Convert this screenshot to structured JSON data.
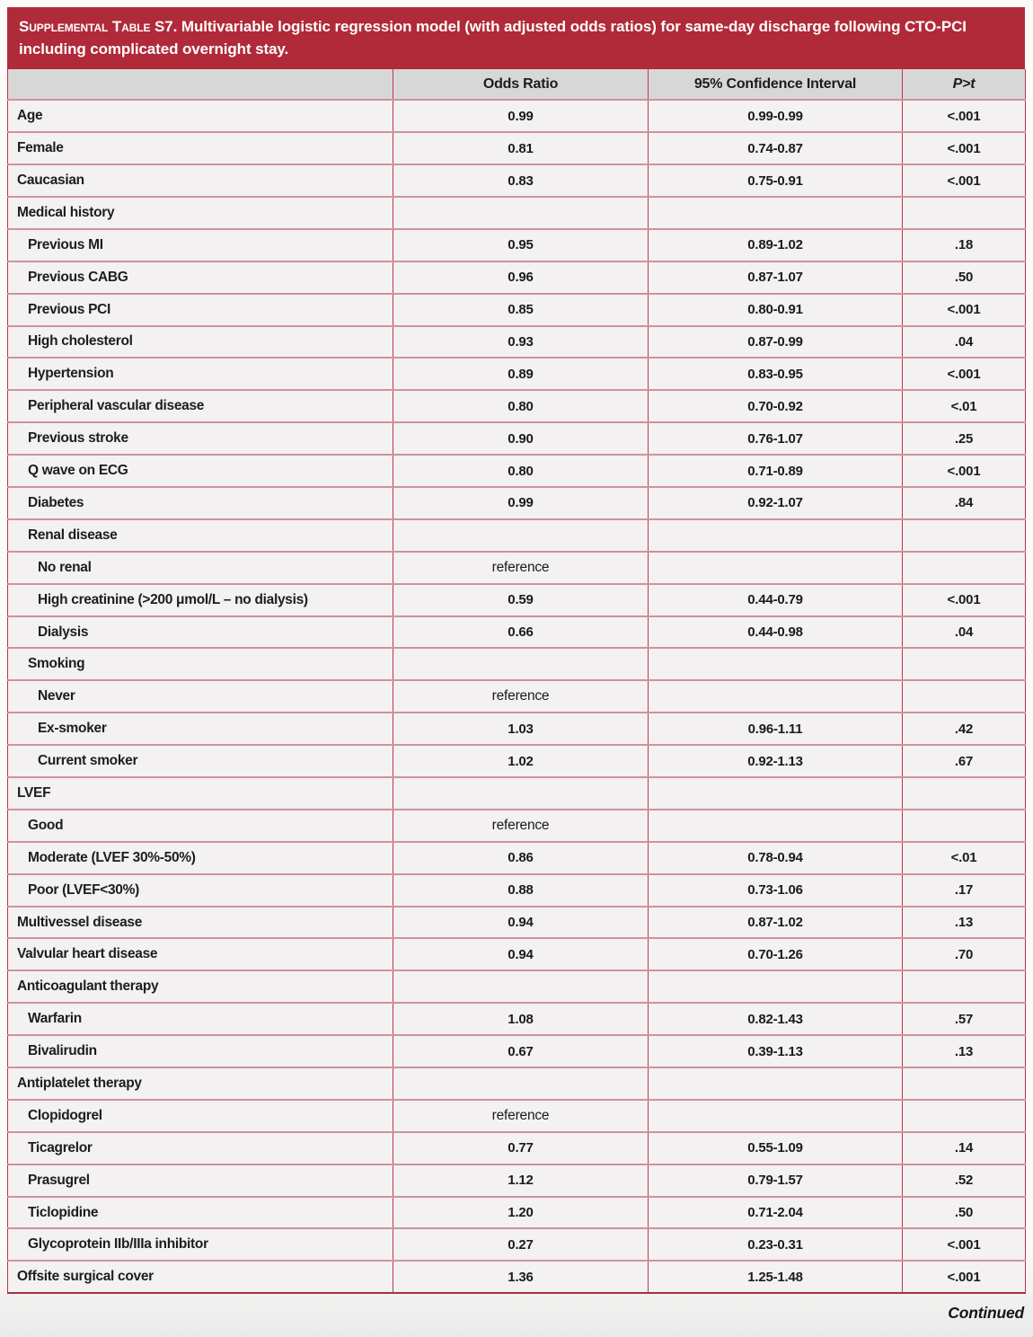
{
  "table": {
    "title_lead": "Supplemental Table S7.",
    "title_rest": "Multivariable logistic regression model (with adjusted odds ratios) for same-day discharge following CTO-PCI including complicated overnight stay.",
    "columns": [
      "",
      "Odds Ratio",
      "95% Confidence Interval",
      "P>t"
    ],
    "rows": [
      {
        "label": "Age",
        "indent": 0,
        "or": "0.99",
        "ci": "0.99-0.99",
        "p": "<.001"
      },
      {
        "label": "Female",
        "indent": 0,
        "or": "0.81",
        "ci": "0.74-0.87",
        "p": "<.001"
      },
      {
        "label": "Caucasian",
        "indent": 0,
        "or": "0.83",
        "ci": "0.75-0.91",
        "p": "<.001"
      },
      {
        "label": "Medical history",
        "indent": 0,
        "or": "",
        "ci": "",
        "p": ""
      },
      {
        "label": "Previous MI",
        "indent": 1,
        "or": "0.95",
        "ci": "0.89-1.02",
        "p": ".18"
      },
      {
        "label": "Previous CABG",
        "indent": 1,
        "or": "0.96",
        "ci": "0.87-1.07",
        "p": ".50"
      },
      {
        "label": "Previous PCI",
        "indent": 1,
        "or": "0.85",
        "ci": "0.80-0.91",
        "p": "<.001"
      },
      {
        "label": "High cholesterol",
        "indent": 1,
        "or": "0.93",
        "ci": "0.87-0.99",
        "p": ".04"
      },
      {
        "label": "Hypertension",
        "indent": 1,
        "or": "0.89",
        "ci": "0.83-0.95",
        "p": "<.001"
      },
      {
        "label": "Peripheral vascular disease",
        "indent": 1,
        "or": "0.80",
        "ci": "0.70-0.92",
        "p": "<.01"
      },
      {
        "label": "Previous stroke",
        "indent": 1,
        "or": "0.90",
        "ci": "0.76-1.07",
        "p": ".25"
      },
      {
        "label": "Q wave on ECG",
        "indent": 1,
        "or": "0.80",
        "ci": "0.71-0.89",
        "p": "<.001"
      },
      {
        "label": "Diabetes",
        "indent": 1,
        "or": "0.99",
        "ci": "0.92-1.07",
        "p": ".84"
      },
      {
        "label": "Renal disease",
        "indent": 1,
        "or": "",
        "ci": "",
        "p": ""
      },
      {
        "label": "No renal",
        "indent": 2,
        "or": "reference",
        "ci": "",
        "p": ""
      },
      {
        "label": "High creatinine (>200 μmol/L – no dialysis)",
        "indent": 2,
        "or": "0.59",
        "ci": "0.44-0.79",
        "p": "<.001"
      },
      {
        "label": "Dialysis",
        "indent": 2,
        "or": "0.66",
        "ci": "0.44-0.98",
        "p": ".04"
      },
      {
        "label": "Smoking",
        "indent": 1,
        "or": "",
        "ci": "",
        "p": ""
      },
      {
        "label": "Never",
        "indent": 2,
        "or": "reference",
        "ci": "",
        "p": ""
      },
      {
        "label": "Ex-smoker",
        "indent": 2,
        "or": "1.03",
        "ci": "0.96-1.11",
        "p": ".42"
      },
      {
        "label": "Current smoker",
        "indent": 2,
        "or": "1.02",
        "ci": "0.92-1.13",
        "p": ".67"
      },
      {
        "label": "LVEF",
        "indent": 0,
        "or": "",
        "ci": "",
        "p": ""
      },
      {
        "label": "Good",
        "indent": 1,
        "or": "reference",
        "ci": "",
        "p": ""
      },
      {
        "label": "Moderate (LVEF 30%-50%)",
        "indent": 1,
        "or": "0.86",
        "ci": "0.78-0.94",
        "p": "<.01"
      },
      {
        "label": "Poor (LVEF<30%)",
        "indent": 1,
        "or": "0.88",
        "ci": "0.73-1.06",
        "p": ".17"
      },
      {
        "label": "Multivessel disease",
        "indent": 0,
        "or": "0.94",
        "ci": "0.87-1.02",
        "p": ".13"
      },
      {
        "label": "Valvular heart disease",
        "indent": 0,
        "or": "0.94",
        "ci": "0.70-1.26",
        "p": ".70"
      },
      {
        "label": "Anticoagulant therapy",
        "indent": 0,
        "or": "",
        "ci": "",
        "p": ""
      },
      {
        "label": "Warfarin",
        "indent": 1,
        "or": "1.08",
        "ci": "0.82-1.43",
        "p": ".57"
      },
      {
        "label": "Bivalirudin",
        "indent": 1,
        "or": "0.67",
        "ci": "0.39-1.13",
        "p": ".13"
      },
      {
        "label": "Antiplatelet therapy",
        "indent": 0,
        "or": "",
        "ci": "",
        "p": ""
      },
      {
        "label": "Clopidogrel",
        "indent": 1,
        "or": "reference",
        "ci": "",
        "p": ""
      },
      {
        "label": "Ticagrelor",
        "indent": 1,
        "or": "0.77",
        "ci": "0.55-1.09",
        "p": ".14"
      },
      {
        "label": "Prasugrel",
        "indent": 1,
        "or": "1.12",
        "ci": "0.79-1.57",
        "p": ".52"
      },
      {
        "label": "Ticlopidine",
        "indent": 1,
        "or": "1.20",
        "ci": "0.71-2.04",
        "p": ".50"
      },
      {
        "label": "Glycoprotein IIb/IIIa inhibitor",
        "indent": 1,
        "or": "0.27",
        "ci": "0.23-0.31",
        "p": "<.001"
      },
      {
        "label": "Offsite surgical cover",
        "indent": 0,
        "or": "1.36",
        "ci": "1.25-1.48",
        "p": "<.001"
      }
    ],
    "continued_note": "Continued"
  }
}
